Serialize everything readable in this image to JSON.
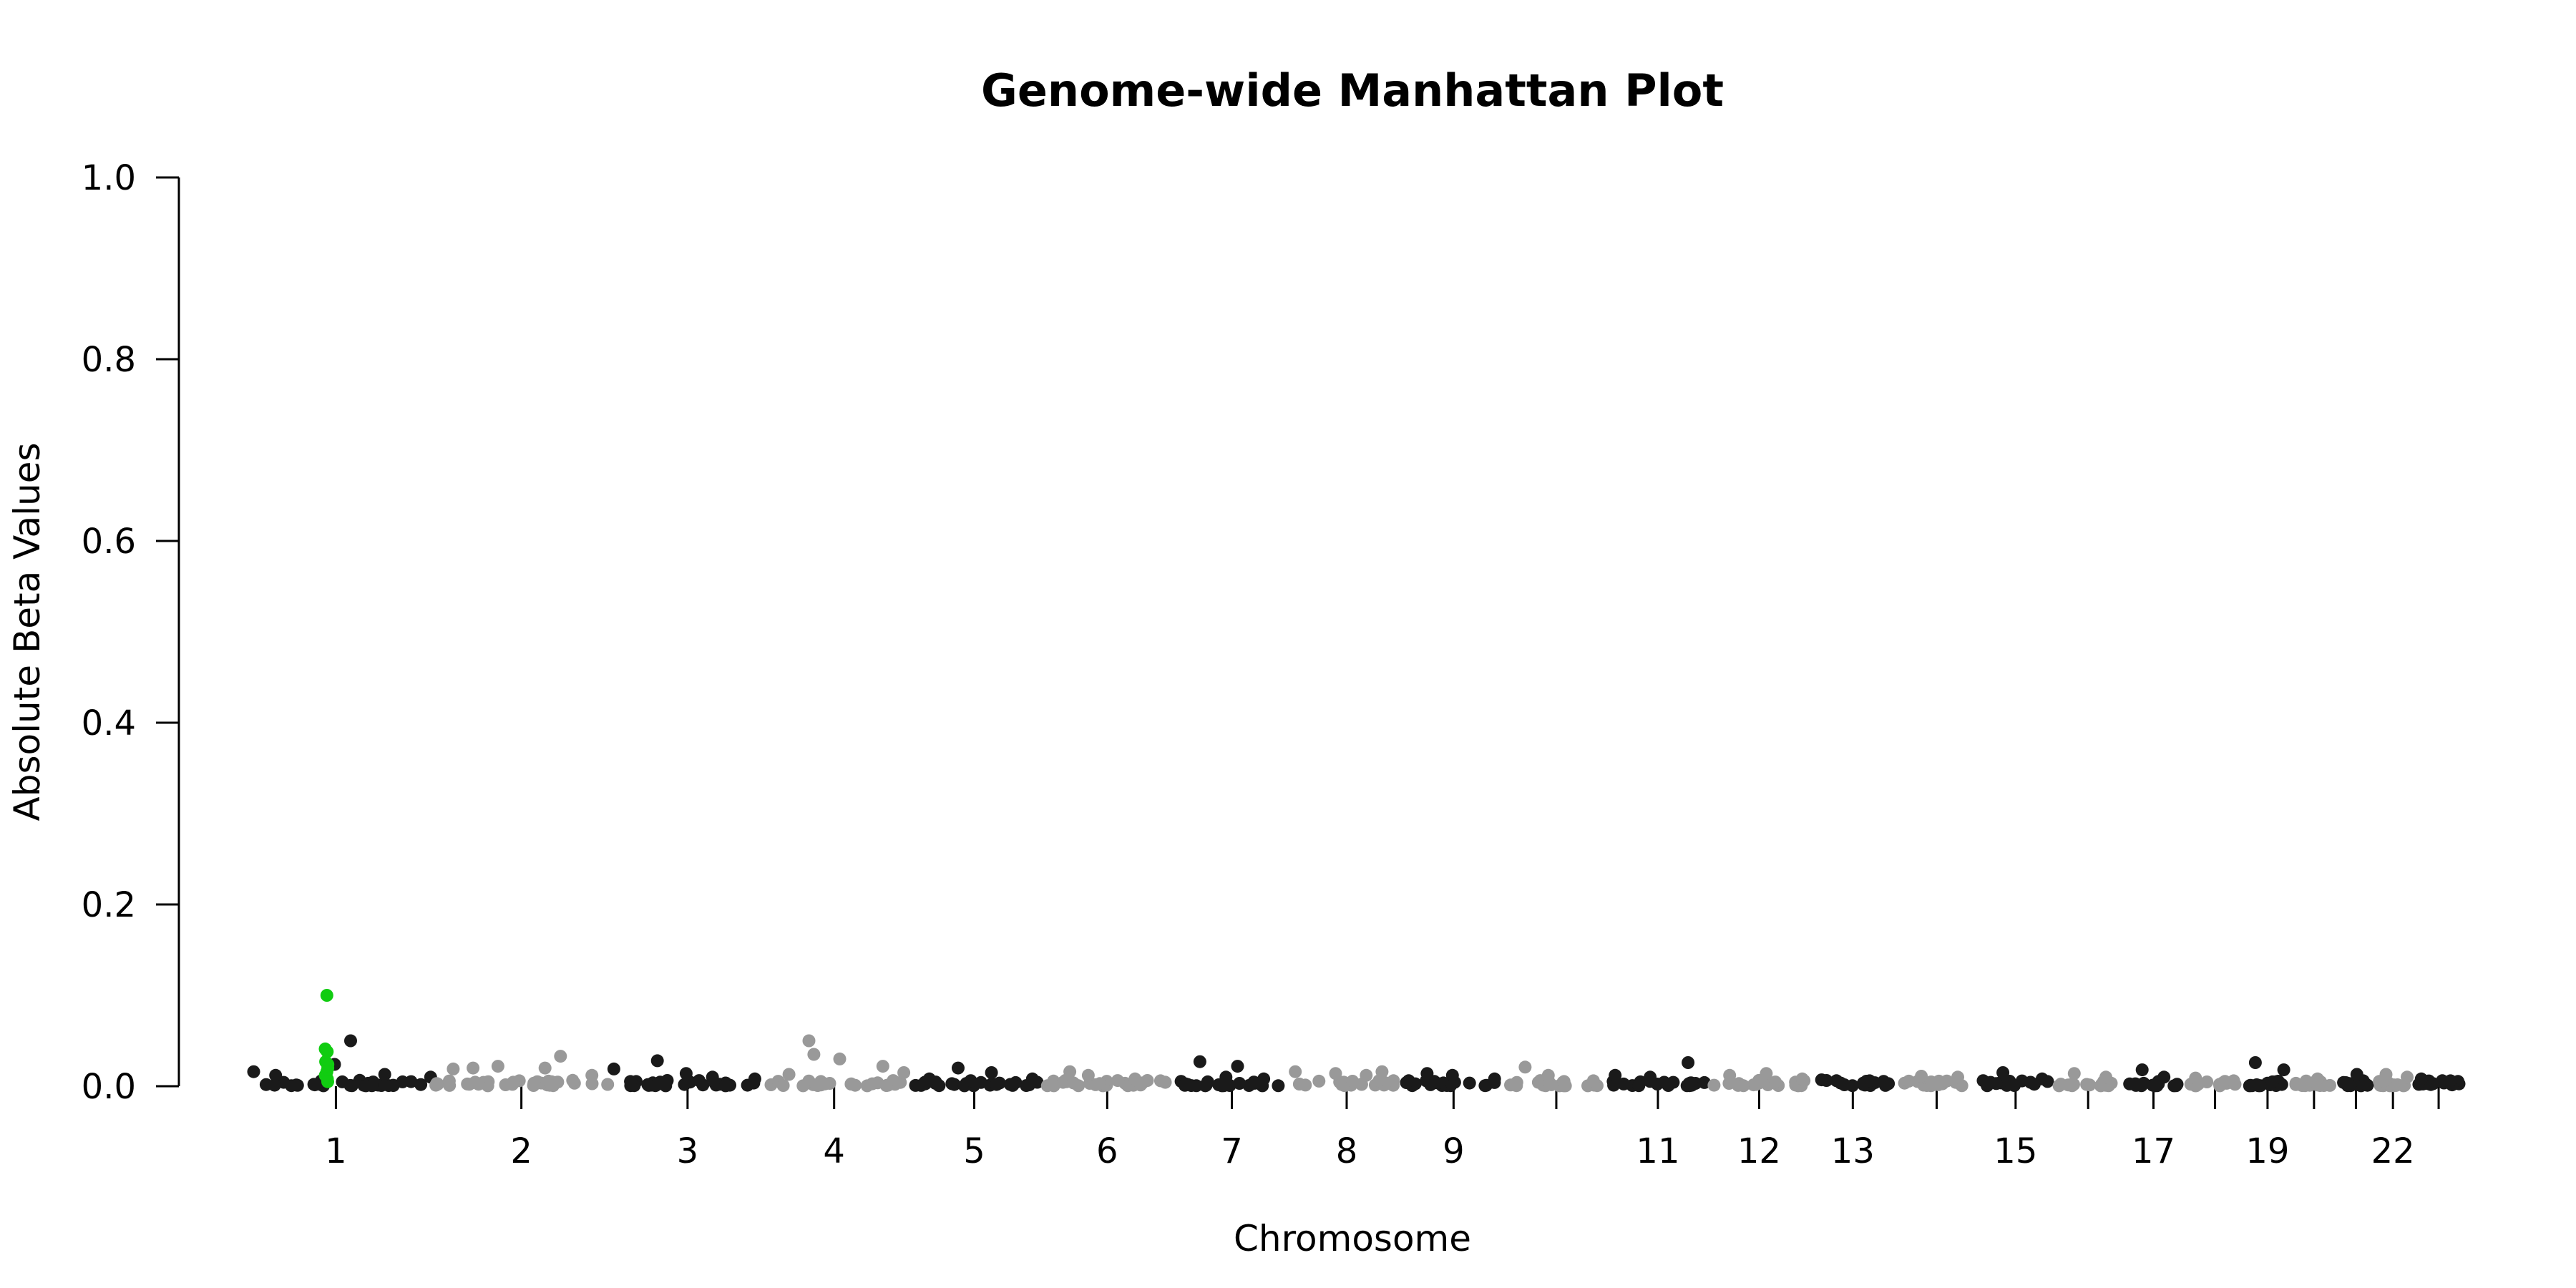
{
  "chart_data": {
    "type": "scatter",
    "title": "Genome-wide Manhattan Plot",
    "xlabel": "Chromosome",
    "ylabel": "Absolute Beta Values",
    "ylim": [
      0,
      1
    ],
    "yticks": [
      "0.0",
      "0.2",
      "0.4",
      "0.6",
      "0.8",
      "1.0"
    ],
    "grid": false,
    "legend": "none",
    "colors": {
      "odd": "#1a1a1a",
      "even": "#999999",
      "highlight": "#11cc11"
    },
    "chromosomes": [
      {
        "chr": "1",
        "label": "1",
        "size": 249,
        "peaks": [
          0.016,
          0.012,
          0.024,
          0.05,
          0.013,
          0.01
        ]
      },
      {
        "chr": "2",
        "label": "2",
        "size": 242,
        "peaks": [
          0.019,
          0.02,
          0.022,
          0.02,
          0.033,
          0.012
        ]
      },
      {
        "chr": "3",
        "label": "3",
        "size": 198,
        "peaks": [
          0.019,
          0.028,
          0.014,
          0.01,
          0.008
        ]
      },
      {
        "chr": "4",
        "label": "4",
        "size": 190,
        "peaks": [
          0.013,
          0.05,
          0.035,
          0.03,
          0.022,
          0.015
        ]
      },
      {
        "chr": "5",
        "label": "5",
        "size": 181,
        "peaks": [
          0.008,
          0.02,
          0.015,
          0.008
        ]
      },
      {
        "chr": "6",
        "label": "6",
        "size": 171,
        "peaks": [
          0.016,
          0.012,
          0.008,
          0.006
        ]
      },
      {
        "chr": "7",
        "label": "7",
        "size": 159,
        "peaks": [
          0.027,
          0.01,
          0.022,
          0.008
        ]
      },
      {
        "chr": "8",
        "label": "8",
        "size": 145,
        "peaks": [
          0.016,
          0.014,
          0.012,
          0.016
        ]
      },
      {
        "chr": "9",
        "label": "9",
        "size": 138,
        "peaks": [
          0.014,
          0.012,
          0.008
        ]
      },
      {
        "chr": "10",
        "label": "",
        "size": 134,
        "peaks": [
          0.021,
          0.012,
          0.006
        ]
      },
      {
        "chr": "11",
        "label": "11",
        "size": 135,
        "peaks": [
          0.012,
          0.01,
          0.026
        ]
      },
      {
        "chr": "12",
        "label": "12",
        "size": 133,
        "peaks": [
          0.012,
          0.014,
          0.008
        ]
      },
      {
        "chr": "13",
        "label": "13",
        "size": 115,
        "peaks": [
          0.007,
          0.006
        ]
      },
      {
        "chr": "14",
        "label": "",
        "size": 107,
        "peaks": [
          0.011,
          0.01
        ]
      },
      {
        "chr": "15",
        "label": "15",
        "size": 102,
        "peaks": [
          0.015,
          0.008
        ]
      },
      {
        "chr": "16",
        "label": "",
        "size": 90,
        "peaks": [
          0.014,
          0.01
        ]
      },
      {
        "chr": "17",
        "label": "17",
        "size": 83,
        "peaks": [
          0.018,
          0.01
        ]
      },
      {
        "chr": "18",
        "label": "",
        "size": 80,
        "peaks": [
          0.009,
          0.006
        ]
      },
      {
        "chr": "19",
        "label": "19",
        "size": 59,
        "peaks": [
          0.026,
          0.018
        ]
      },
      {
        "chr": "20",
        "label": "",
        "size": 64,
        "peaks": [
          0.008
        ]
      },
      {
        "chr": "21",
        "label": "",
        "size": 47,
        "peaks": [
          0.013
        ]
      },
      {
        "chr": "22",
        "label": "22",
        "size": 51,
        "peaks": [
          0.013,
          0.01
        ]
      },
      {
        "chr": "X",
        "label": "",
        "size": 70,
        "peaks": [
          0.008,
          0.006
        ]
      }
    ],
    "highlight": {
      "chr": "1",
      "position": 0.45,
      "values": [
        0.1,
        0.041,
        0.038,
        0.027,
        0.024,
        0.02,
        0.016,
        0.012,
        0.008,
        0.005
      ]
    }
  }
}
